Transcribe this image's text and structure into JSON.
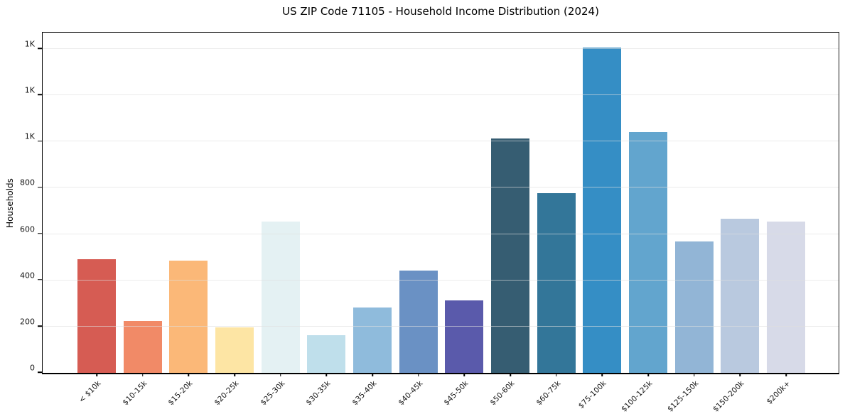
{
  "chart_data": {
    "type": "bar",
    "title": "US ZIP Code 71105 - Household Income Distribution (2024)",
    "xlabel": "",
    "ylabel": "Households",
    "categories": [
      "< $10k",
      "$10-15k",
      "$15-20k",
      "$20-25k",
      "$25-30k",
      "$30-35k",
      "$35-40k",
      "$40-45k",
      "$45-50k",
      "$50-60k",
      "$60-75k",
      "$75-100k",
      "$100-125k",
      "$125-150k",
      "$150-200k",
      "$200k+"
    ],
    "values": [
      490,
      225,
      485,
      198,
      655,
      162,
      283,
      442,
      313,
      1012,
      778,
      1405,
      1040,
      567,
      665,
      655
    ],
    "bar_colors": [
      "#d65c53",
      "#f18a67",
      "#fbb878",
      "#fde5a4",
      "#e4f1f3",
      "#bfdfeb",
      "#8fbbdc",
      "#6a91c4",
      "#5a5aab",
      "#365d72",
      "#337699",
      "#358ec5",
      "#62a5ce",
      "#92b5d6",
      "#b9c9df",
      "#d7dae8"
    ],
    "ylim": [
      0,
      1480
    ],
    "ytick_interval": 200,
    "ytick_values": [
      0,
      200,
      400,
      600,
      800,
      1000,
      1200,
      1400
    ],
    "ytick_labels": [
      "0",
      "200",
      "400",
      "600",
      "800",
      "1K",
      "1K",
      "1K"
    ],
    "grid": "horizontal",
    "legend": "none",
    "x_tick_rotation": 45
  }
}
